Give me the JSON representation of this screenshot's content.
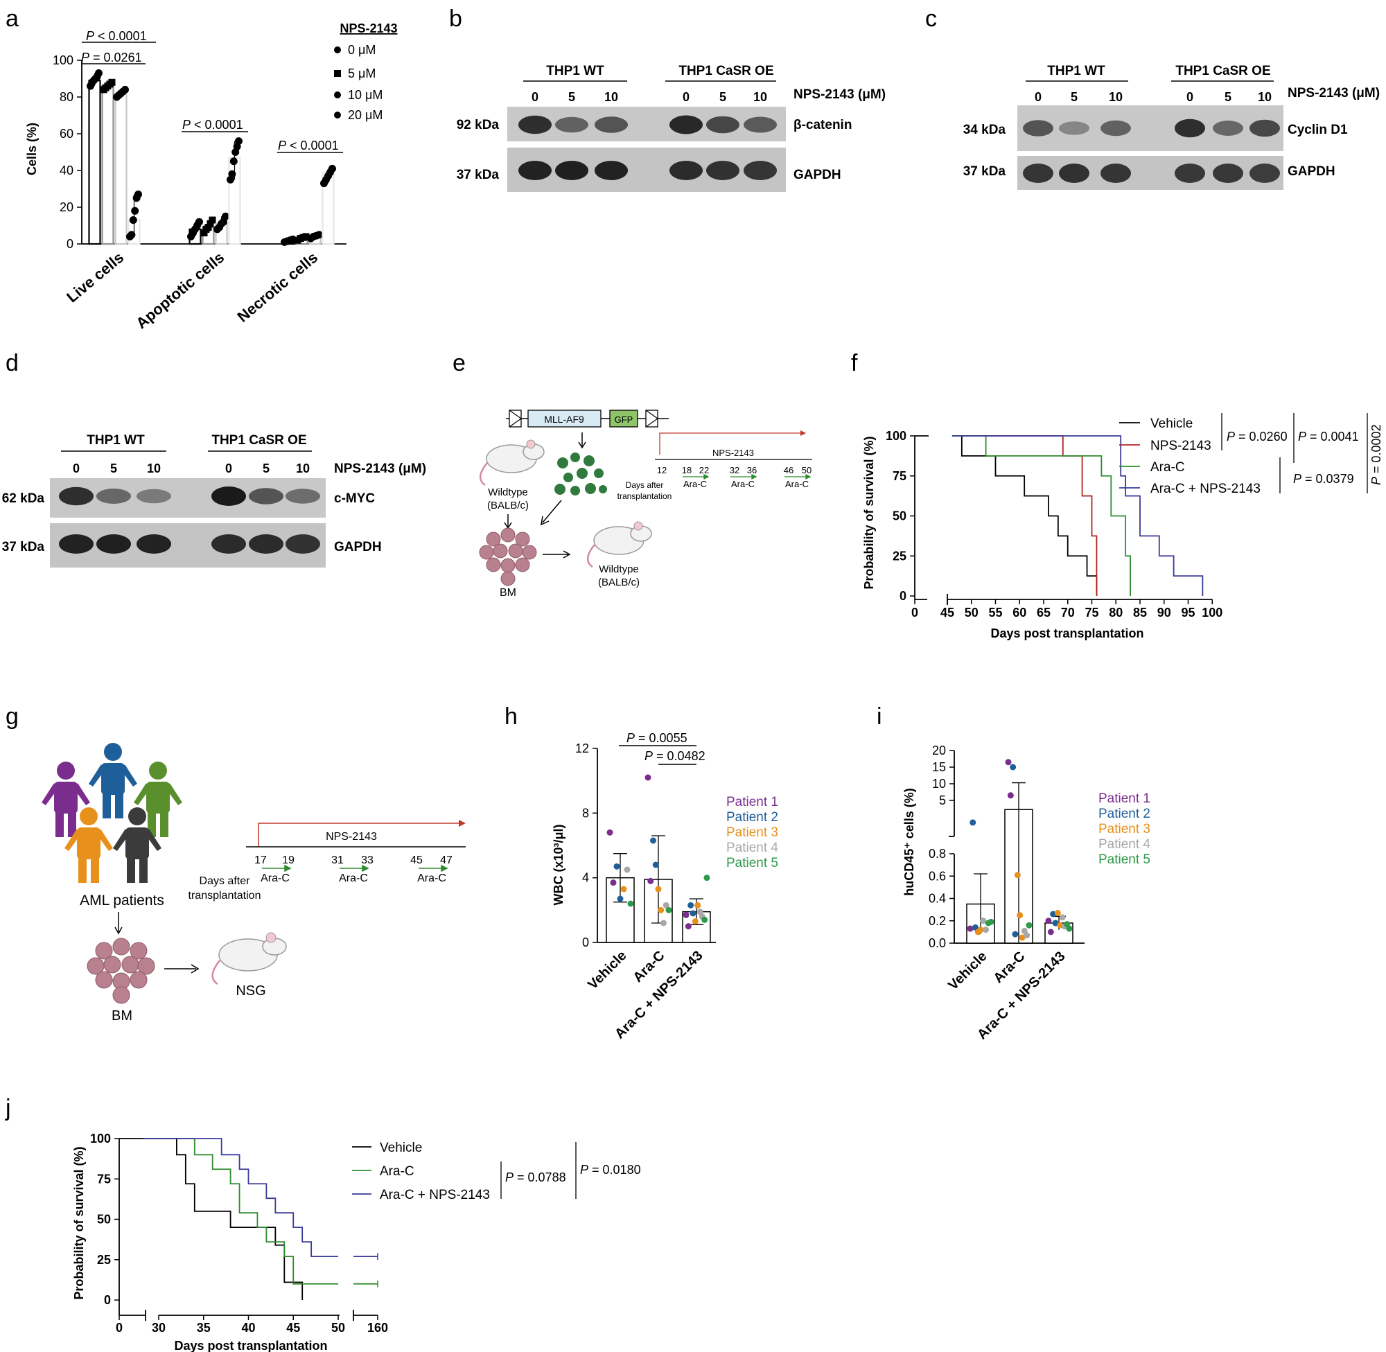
{
  "panels": {
    "a": "a",
    "b": "b",
    "c": "c",
    "d": "d",
    "e": "e",
    "f": "f",
    "g": "g",
    "h": "h",
    "i": "i",
    "j": "j"
  },
  "panel_a": {
    "legend_title": "NPS-2143",
    "legend_entries": [
      "0 μM",
      "5 μM",
      "10 μM",
      "20 μM"
    ],
    "stats": [
      {
        "italic": "P",
        "text": " < 0.0001"
      },
      {
        "italic": "P",
        "text": " = 0.0261"
      },
      {
        "italic": "P",
        "text": " < 0.0001"
      },
      {
        "italic": "P",
        "text": " < 0.0001"
      }
    ]
  },
  "blot_b": {
    "group1": "THP1 WT",
    "group2": "THP1 CaSR OE",
    "doses": [
      "0",
      "5",
      "10",
      "0",
      "5",
      "10"
    ],
    "dose_label": "NPS-2143 (μM)",
    "rows": [
      {
        "kda": "92 kDa",
        "protein": "β-catenin"
      },
      {
        "kda": "37 kDa",
        "protein": "GAPDH"
      }
    ]
  },
  "blot_c": {
    "group1": "THP1 WT",
    "group2": "THP1 CaSR OE",
    "doses": [
      "0",
      "5",
      "10",
      "0",
      "5",
      "10"
    ],
    "dose_label": "NPS-2143 (μM)",
    "rows": [
      {
        "kda": "34 kDa",
        "protein": "Cyclin D1"
      },
      {
        "kda": "37 kDa",
        "protein": "GAPDH"
      }
    ]
  },
  "blot_d": {
    "group1": "THP1 WT",
    "group2": "THP1 CaSR OE",
    "doses": [
      "0",
      "5",
      "10",
      "0",
      "5",
      "10"
    ],
    "dose_label": "NPS-2143 (μM)",
    "rows": [
      {
        "kda": "62 kDa",
        "protein": "c-MYC"
      },
      {
        "kda": "37 kDa",
        "protein": "GAPDH"
      }
    ]
  },
  "panel_e": {
    "construct": "MLL-AF9",
    "reporter": "GFP",
    "donor": "Wildtype",
    "donor_strain": "(BALB/c)",
    "bm": "BM",
    "recipient": "Wildtype",
    "recipient_strain": "(BALB/c)",
    "drug": "NPS-2143",
    "days": [
      "12",
      "18",
      "22",
      "32",
      "36",
      "46",
      "50"
    ],
    "arac": [
      "Ara-C",
      "Ara-C",
      "Ara-C"
    ],
    "days_caption_1": "Days after",
    "days_caption_2": "transplantation"
  },
  "panel_f": {
    "legend": [
      "Vehicle",
      "NPS-2143",
      "Ara-C",
      "Ara-C + NPS-2143"
    ],
    "stats": [
      {
        "italic": "P",
        "text": " = 0.0260"
      },
      {
        "italic": "P",
        "text": " = 0.0041"
      },
      {
        "italic": "P",
        "text": " = 0.0379"
      },
      {
        "italic": "P",
        "text": " = 0.0002"
      }
    ]
  },
  "panel_g": {
    "patients": "AML patients",
    "bm": "BM",
    "recipient": "NSG",
    "drug": "NPS-2143",
    "days": [
      "17",
      "19",
      "31",
      "33",
      "45",
      "47"
    ],
    "arac": [
      "Ara-C",
      "Ara-C",
      "Ara-C"
    ],
    "days_caption_1": "Days after",
    "days_caption_2": "transplantation"
  },
  "patient_legend": [
    "Patient 1",
    "Patient 2",
    "Patient 3",
    "Patient 4",
    "Patient 5"
  ],
  "panel_h_stats": [
    {
      "italic": "P",
      "text": " = 0.0055"
    },
    {
      "italic": "P",
      "text": " = 0.0482"
    }
  ],
  "panel_j": {
    "legend": [
      "Vehicle",
      "Ara-C",
      "Ara-C + NPS-2143"
    ],
    "stats": [
      {
        "italic": "P",
        "text": " = 0.0788"
      },
      {
        "italic": "P",
        "text": " = 0.0180"
      }
    ]
  },
  "colors": {
    "vehicle": "#000000",
    "nps": "#b22222",
    "arac": "#2e8b2e",
    "combo": "#3a3a9a",
    "patient1": "#7b2d8e",
    "patient2": "#1f5f99",
    "patient3": "#e8901c",
    "patient4": "#a8a8a8",
    "patient5": "#2e9a4a",
    "bar_fills": [
      "#000000",
      "#909090",
      "#c8c8c8",
      "#e6e6e6"
    ],
    "blot_bg": "#c8c8c8",
    "cell_pink": "#b9808f",
    "leukemia_green": "#2f7a3c"
  },
  "chart_data": [
    {
      "panel": "a",
      "type": "bar",
      "categories": [
        "Live cells",
        "Apoptotic cells",
        "Necrotic cells"
      ],
      "series": [
        {
          "name": "0 μM",
          "values": [
            89,
            8,
            2
          ]
        },
        {
          "name": "5 μM",
          "values": [
            86,
            9,
            3
          ]
        },
        {
          "name": "10 μM",
          "values": [
            82,
            11,
            4
          ]
        },
        {
          "name": "20 μM",
          "values": [
            13,
            47,
            39
          ]
        }
      ],
      "points": [
        [
          [
            86,
            88,
            89,
            90,
            91,
            93
          ],
          [
            84,
            85,
            86,
            87,
            88
          ],
          [
            80,
            81,
            82,
            83,
            84
          ],
          [
            4,
            5,
            13,
            18,
            25,
            27
          ]
        ],
        [
          [
            4,
            6,
            8,
            10,
            12
          ],
          [
            6,
            8,
            9,
            11,
            13
          ],
          [
            8,
            9,
            11,
            12,
            15
          ],
          [
            35,
            38,
            45,
            50,
            53,
            56
          ]
        ],
        [
          [
            1,
            1.5,
            2,
            2.5
          ],
          [
            2,
            3,
            3.5,
            4
          ],
          [
            3,
            4,
            4.5,
            5
          ],
          [
            33,
            35,
            37,
            39,
            41
          ]
        ]
      ],
      "ylabel": "Cells (%)",
      "ylim": [
        0,
        100
      ],
      "yticks": [
        "0",
        "20",
        "40",
        "60",
        "80",
        "100"
      ]
    },
    {
      "panel": "f",
      "type": "line",
      "series": [
        {
          "name": "Vehicle",
          "x": [
            46,
            48,
            53,
            55,
            59,
            61,
            66,
            68,
            70,
            74,
            76
          ],
          "y": [
            100,
            87.5,
            87.5,
            75,
            75,
            62.5,
            50,
            37.5,
            25,
            12.5,
            0
          ]
        },
        {
          "name": "NPS-2143",
          "x": [
            46,
            67,
            69,
            73,
            75,
            76
          ],
          "y": [
            100,
            100,
            87.5,
            62.5,
            37.5,
            0
          ]
        },
        {
          "name": "Ara-C",
          "x": [
            46,
            53,
            68,
            77,
            79,
            82,
            83
          ],
          "y": [
            100,
            87.5,
            87.5,
            75,
            50,
            25,
            0
          ]
        },
        {
          "name": "Ara-C + NPS-2143",
          "x": [
            46,
            70,
            81,
            82,
            85,
            89,
            92,
            98
          ],
          "y": [
            100,
            100,
            75,
            62.5,
            37.5,
            25,
            12.5,
            0
          ]
        }
      ],
      "xlabel": "Days post transplantation",
      "ylabel": "Probability of survival (%)",
      "xticks": [
        "0",
        "45",
        "50",
        "55",
        "60",
        "65",
        "70",
        "75",
        "80",
        "85",
        "90",
        "95",
        "100"
      ],
      "yticks": [
        "0",
        "25",
        "50",
        "75",
        "100"
      ],
      "ylim": [
        0,
        100
      ]
    },
    {
      "panel": "h",
      "type": "scatter",
      "categories": [
        "Vehicle",
        "Ara-C",
        "Ara-C + NPS-2143"
      ],
      "bar_means": [
        4.0,
        3.9,
        1.9
      ],
      "sd": [
        1.5,
        2.7,
        0.8
      ],
      "points": [
        [
          {
            "v": 6.8,
            "p": 1
          },
          {
            "v": 3.7,
            "p": 1
          },
          {
            "v": 4.7,
            "p": 2
          },
          {
            "v": 2.7,
            "p": 2
          },
          {
            "v": 3.3,
            "p": 3
          },
          {
            "v": 4.5,
            "p": 4
          },
          {
            "v": 2.4,
            "p": 5
          }
        ],
        [
          {
            "v": 10.2,
            "p": 1
          },
          {
            "v": 3.8,
            "p": 1
          },
          {
            "v": 6.3,
            "p": 2
          },
          {
            "v": 4.8,
            "p": 2
          },
          {
            "v": 3.3,
            "p": 3
          },
          {
            "v": 2.0,
            "p": 3
          },
          {
            "v": 1.2,
            "p": 4
          },
          {
            "v": 2.3,
            "p": 4
          },
          {
            "v": 2.0,
            "p": 5
          }
        ],
        [
          {
            "v": 1.7,
            "p": 1
          },
          {
            "v": 1.0,
            "p": 1
          },
          {
            "v": 2.3,
            "p": 2
          },
          {
            "v": 1.8,
            "p": 2
          },
          {
            "v": 1.3,
            "p": 3
          },
          {
            "v": 2.3,
            "p": 3
          },
          {
            "v": 1.9,
            "p": 4
          },
          {
            "v": 1.6,
            "p": 4
          },
          {
            "v": 1.4,
            "p": 5
          },
          {
            "v": 4.0,
            "p": 5
          }
        ]
      ],
      "ylabel": "WBC (x10³/μl)",
      "ylim": [
        0,
        12
      ],
      "yticks": [
        "0",
        "4",
        "8",
        "12"
      ]
    },
    {
      "panel": "i",
      "type": "scatter",
      "categories": [
        "Vehicle",
        "Ara-C",
        "Ara-C + NPS-2143"
      ],
      "bar_means": [
        0.35,
        3.8,
        0.18
      ],
      "sd": [
        0.27,
        6.5,
        0.06
      ],
      "points": [
        [
          {
            "v": 0.13,
            "p": 1
          },
          {
            "v": 2.1,
            "p": 2
          },
          {
            "v": 0.14,
            "p": 2
          },
          {
            "v": 0.1,
            "p": 3
          },
          {
            "v": 0.12,
            "p": 3
          },
          {
            "v": 0.2,
            "p": 4
          },
          {
            "v": 0.12,
            "p": 4
          },
          {
            "v": 0.18,
            "p": 5
          },
          {
            "v": 0.19,
            "p": 5
          }
        ],
        [
          {
            "v": 16.5,
            "p": 1
          },
          {
            "v": 6.5,
            "p": 1
          },
          {
            "v": 15,
            "p": 2
          },
          {
            "v": 0.08,
            "p": 2
          },
          {
            "v": 0.61,
            "p": 3
          },
          {
            "v": 0.25,
            "p": 3
          },
          {
            "v": 0.05,
            "p": 3
          },
          {
            "v": 0.11,
            "p": 4
          },
          {
            "v": 0.07,
            "p": 4
          },
          {
            "v": 0.16,
            "p": 5
          }
        ],
        [
          {
            "v": 0.2,
            "p": 1
          },
          {
            "v": 0.1,
            "p": 1
          },
          {
            "v": 0.26,
            "p": 2
          },
          {
            "v": 0.18,
            "p": 2
          },
          {
            "v": 0.27,
            "p": 3
          },
          {
            "v": 0.16,
            "p": 3
          },
          {
            "v": 0.23,
            "p": 4
          },
          {
            "v": 0.15,
            "p": 4
          },
          {
            "v": 0.17,
            "p": 5
          },
          {
            "v": 0.13,
            "p": 5
          }
        ]
      ],
      "ylabel": "huCD45⁺ cells (%)",
      "yticks_lower": [
        "0.0",
        "0.2",
        "0.4",
        "0.6",
        "0.8"
      ],
      "yticks_upper": [
        "5",
        "10",
        "15",
        "20"
      ],
      "ylim": [
        0,
        20
      ]
    },
    {
      "panel": "j",
      "type": "line",
      "series": [
        {
          "name": "Vehicle",
          "x": [
            28,
            31,
            32,
            33,
            34,
            37,
            38,
            42,
            43,
            44,
            46
          ],
          "y": [
            100,
            100,
            90,
            72,
            55,
            55,
            45,
            45,
            34,
            11,
            0
          ]
        },
        {
          "name": "Ara-C",
          "x": [
            28,
            33,
            34,
            36,
            38,
            39,
            41,
            42,
            44,
            45,
            50,
            160
          ],
          "y": [
            100,
            100,
            90,
            81,
            72,
            54,
            45,
            36,
            27,
            10,
            10,
            10
          ]
        },
        {
          "name": "Ara-C + NPS-2143",
          "x": [
            28,
            35,
            37,
            39,
            40,
            42,
            43,
            45,
            46,
            47,
            50,
            160
          ],
          "y": [
            100,
            100,
            90,
            81,
            72,
            63,
            54,
            45,
            36,
            27,
            27,
            27
          ]
        }
      ],
      "xlabel": "Days post transplantation",
      "ylabel": "Probability of survival (%)",
      "xticks": [
        "0",
        "30",
        "35",
        "40",
        "45",
        "50",
        "160"
      ],
      "yticks": [
        "0",
        "25",
        "50",
        "75",
        "100"
      ],
      "ylim": [
        0,
        100
      ]
    }
  ]
}
